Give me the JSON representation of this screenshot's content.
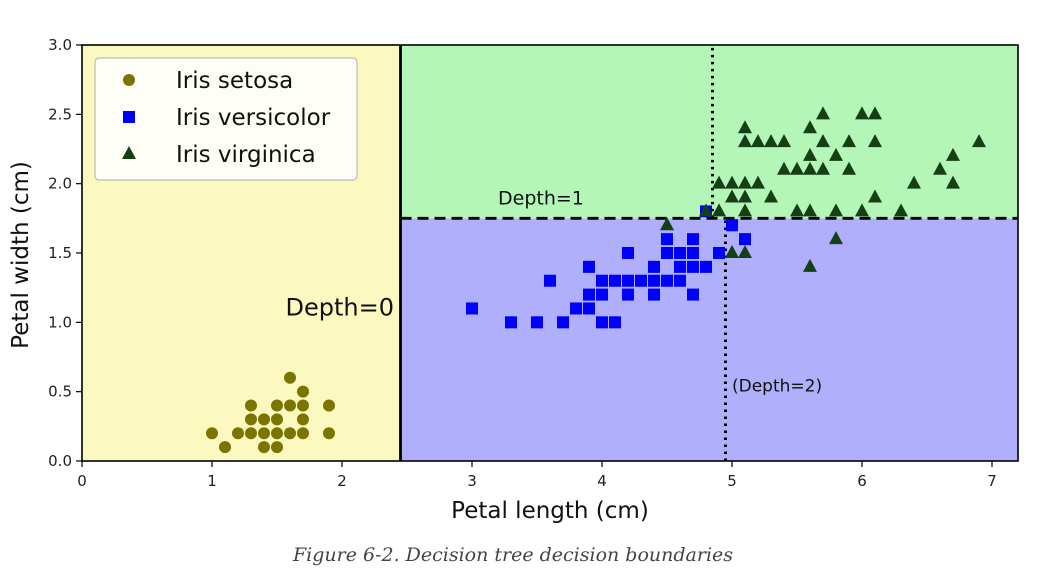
{
  "caption": "Figure 6-2. Decision tree decision boundaries",
  "colors": {
    "region_setosa": "#fbf8c0",
    "region_versicolor": "#afaffb",
    "region_virginica": "#b3f6b8",
    "setosa": "#7b7500",
    "versicolor": "#0000ff",
    "virginica": "#153f15"
  },
  "chart_data": {
    "type": "scatter",
    "xlabel": "Petal length (cm)",
    "ylabel": "Petal width (cm)",
    "xlim": [
      0,
      7.2
    ],
    "ylim": [
      0,
      3.0
    ],
    "xticks": [
      "0",
      "1",
      "2",
      "3",
      "4",
      "5",
      "6",
      "7"
    ],
    "yticks": [
      "0.0",
      "0.5",
      "1.0",
      "1.5",
      "2.0",
      "2.5",
      "3.0"
    ],
    "legend_position": "top-left",
    "grid": false,
    "regions": [
      {
        "class": "Iris setosa",
        "x": [
          0,
          2.45
        ],
        "y": [
          0,
          3.0
        ]
      },
      {
        "class": "Iris versicolor",
        "x": [
          2.45,
          7.2
        ],
        "y": [
          0,
          1.75
        ]
      },
      {
        "class": "Iris virginica",
        "x": [
          2.45,
          7.2
        ],
        "y": [
          1.75,
          3.0
        ]
      }
    ],
    "boundaries": [
      {
        "label": "Depth=0",
        "style": "solid",
        "x": 2.45,
        "y_range": [
          0,
          3.0
        ],
        "label_x": 2.4,
        "label_y": 1.05
      },
      {
        "label": "Depth=1",
        "style": "dashed",
        "y": 1.75,
        "x_range": [
          2.45,
          7.2
        ],
        "label_x": 3.2,
        "label_y": 1.85
      },
      {
        "label": "(Depth=2)",
        "style": "dotted",
        "x": 4.95,
        "y_range": [
          0,
          1.75
        ],
        "label_x": 5.0,
        "label_y": 0.5
      },
      {
        "label": "",
        "style": "dotted",
        "x": 4.85,
        "y_range": [
          1.75,
          3.0
        ]
      }
    ],
    "series": [
      {
        "name": "Iris setosa",
        "marker": "circle",
        "points": [
          [
            1.0,
            0.2
          ],
          [
            1.1,
            0.1
          ],
          [
            1.2,
            0.2
          ],
          [
            1.3,
            0.2
          ],
          [
            1.3,
            0.3
          ],
          [
            1.3,
            0.4
          ],
          [
            1.4,
            0.1
          ],
          [
            1.4,
            0.2
          ],
          [
            1.4,
            0.3
          ],
          [
            1.5,
            0.1
          ],
          [
            1.5,
            0.2
          ],
          [
            1.5,
            0.3
          ],
          [
            1.5,
            0.4
          ],
          [
            1.6,
            0.2
          ],
          [
            1.6,
            0.4
          ],
          [
            1.6,
            0.6
          ],
          [
            1.7,
            0.2
          ],
          [
            1.7,
            0.3
          ],
          [
            1.7,
            0.4
          ],
          [
            1.7,
            0.5
          ],
          [
            1.9,
            0.2
          ],
          [
            1.9,
            0.4
          ]
        ]
      },
      {
        "name": "Iris versicolor",
        "marker": "square",
        "points": [
          [
            3.0,
            1.1
          ],
          [
            3.3,
            1.0
          ],
          [
            3.5,
            1.0
          ],
          [
            3.6,
            1.3
          ],
          [
            3.7,
            1.0
          ],
          [
            3.8,
            1.1
          ],
          [
            3.9,
            1.1
          ],
          [
            3.9,
            1.2
          ],
          [
            3.9,
            1.4
          ],
          [
            4.0,
            1.0
          ],
          [
            4.0,
            1.2
          ],
          [
            4.0,
            1.3
          ],
          [
            4.1,
            1.0
          ],
          [
            4.1,
            1.3
          ],
          [
            4.2,
            1.2
          ],
          [
            4.2,
            1.3
          ],
          [
            4.2,
            1.5
          ],
          [
            4.3,
            1.3
          ],
          [
            4.4,
            1.2
          ],
          [
            4.4,
            1.3
          ],
          [
            4.4,
            1.4
          ],
          [
            4.5,
            1.3
          ],
          [
            4.5,
            1.5
          ],
          [
            4.5,
            1.6
          ],
          [
            4.6,
            1.3
          ],
          [
            4.6,
            1.4
          ],
          [
            4.6,
            1.5
          ],
          [
            4.7,
            1.2
          ],
          [
            4.7,
            1.4
          ],
          [
            4.7,
            1.5
          ],
          [
            4.7,
            1.6
          ],
          [
            4.8,
            1.4
          ],
          [
            4.8,
            1.8
          ],
          [
            4.9,
            1.5
          ],
          [
            5.0,
            1.7
          ],
          [
            5.1,
            1.6
          ]
        ]
      },
      {
        "name": "Iris virginica",
        "marker": "triangle",
        "points": [
          [
            4.5,
            1.7
          ],
          [
            4.8,
            1.8
          ],
          [
            4.9,
            1.8
          ],
          [
            4.9,
            2.0
          ],
          [
            5.0,
            1.5
          ],
          [
            5.0,
            1.9
          ],
          [
            5.0,
            2.0
          ],
          [
            5.1,
            1.5
          ],
          [
            5.1,
            1.8
          ],
          [
            5.1,
            1.9
          ],
          [
            5.1,
            2.0
          ],
          [
            5.1,
            2.3
          ],
          [
            5.1,
            2.4
          ],
          [
            5.2,
            2.0
          ],
          [
            5.2,
            2.3
          ],
          [
            5.3,
            1.9
          ],
          [
            5.3,
            2.3
          ],
          [
            5.4,
            2.1
          ],
          [
            5.4,
            2.3
          ],
          [
            5.5,
            1.8
          ],
          [
            5.5,
            2.1
          ],
          [
            5.6,
            1.4
          ],
          [
            5.6,
            1.8
          ],
          [
            5.6,
            2.1
          ],
          [
            5.6,
            2.2
          ],
          [
            5.6,
            2.4
          ],
          [
            5.7,
            2.1
          ],
          [
            5.7,
            2.3
          ],
          [
            5.7,
            2.5
          ],
          [
            5.8,
            1.6
          ],
          [
            5.8,
            1.8
          ],
          [
            5.8,
            2.2
          ],
          [
            5.9,
            2.1
          ],
          [
            5.9,
            2.3
          ],
          [
            6.0,
            1.8
          ],
          [
            6.0,
            2.5
          ],
          [
            6.1,
            1.9
          ],
          [
            6.1,
            2.3
          ],
          [
            6.1,
            2.5
          ],
          [
            6.3,
            1.8
          ],
          [
            6.4,
            2.0
          ],
          [
            6.6,
            2.1
          ],
          [
            6.7,
            2.0
          ],
          [
            6.7,
            2.2
          ],
          [
            6.9,
            2.3
          ]
        ]
      }
    ]
  }
}
